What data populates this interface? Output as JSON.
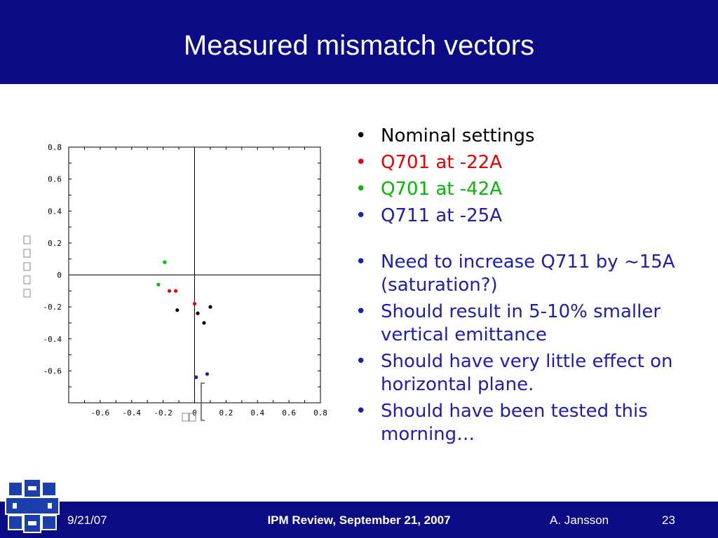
{
  "slide": {
    "title": "Measured mismatch vectors"
  },
  "bullets_top": [
    {
      "text": "Nominal settings",
      "color": "#000000"
    },
    {
      "text": "Q701 at -22A",
      "color": "#ee0000"
    },
    {
      "text": "Q701 at -42A",
      "color": "#00bb00"
    },
    {
      "text": "Q711 at -25A",
      "color": "#1c1cb8"
    }
  ],
  "bullets_bottom": [
    {
      "text": "Need to increase Q711 by ~15A (saturation?)",
      "color": "#1c1cb8"
    },
    {
      "text": "Should result in 5-10% smaller vertical emittance",
      "color": "#1c1cb8"
    },
    {
      "text": "Should have very little effect on horizontal plane.",
      "color": "#1c1cb8"
    },
    {
      "text": "Should have been tested this morning…",
      "color": "#1c1cb8"
    }
  ],
  "bullet_symbol": "•",
  "footer": {
    "date": "9/21/07",
    "title": "IPM Review, September 21, 2007",
    "author": "A. Jansson",
    "page": "23"
  },
  "colors": {
    "bar_background": "#0b0b86",
    "nominal": "#000000",
    "q701_22": "#ee0000",
    "q701_42": "#00bb00",
    "q711_25": "#1c1cb8"
  },
  "logo": {
    "icon": "fermilab-logo-icon"
  },
  "chart_data": {
    "type": "scatter",
    "xlim": [
      -0.8,
      0.8
    ],
    "ylim": [
      -0.8,
      0.8
    ],
    "x_ticks": [
      "-0.6",
      "-0.4",
      "-0.2",
      "0",
      "0.2",
      "0.4",
      "0.6",
      "0.8"
    ],
    "y_ticks": [
      "0.8",
      "0.6",
      "0.4",
      "0.2",
      "0",
      "-0.2",
      "-0.4",
      "-0.6"
    ],
    "grid": false,
    "axes_lines_through_origin": true,
    "series": [
      {
        "name": "Nominal settings",
        "color": "#000000",
        "points": [
          [
            -0.11,
            -0.22
          ],
          [
            0.02,
            -0.24
          ],
          [
            0.06,
            -0.3
          ],
          [
            0.1,
            -0.2
          ]
        ]
      },
      {
        "name": "Q701 at -22A",
        "color": "#ee0000",
        "points": [
          [
            -0.16,
            -0.1
          ],
          [
            -0.12,
            -0.1
          ],
          [
            0.0,
            -0.18
          ]
        ]
      },
      {
        "name": "Q701 at -42A",
        "color": "#00bb00",
        "points": [
          [
            -0.19,
            0.08
          ],
          [
            -0.23,
            -0.06
          ]
        ]
      },
      {
        "name": "Q711 at -25A",
        "color": "#1c1cb8",
        "points": [
          [
            0.01,
            -0.64
          ],
          [
            0.08,
            -0.62
          ]
        ]
      }
    ]
  }
}
